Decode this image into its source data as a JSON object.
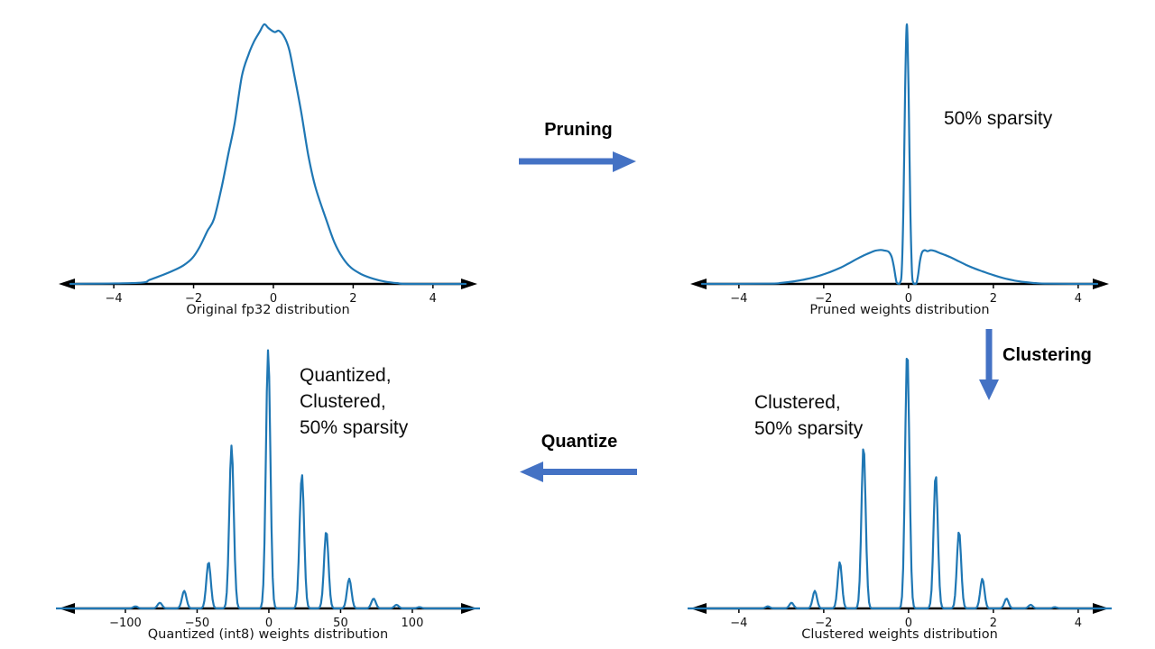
{
  "page": {
    "background": "#ffffff"
  },
  "flow": {
    "arrow_color": "#4472c4",
    "pruning_label": "Pruning",
    "clustering_label": "Clustering",
    "quantize_label": "Quantize"
  },
  "annotations": {
    "pruned_note": "50% sparsity",
    "clustered_note_lines": [
      "Clustered,",
      "50% sparsity"
    ],
    "quantized_note_lines": [
      "Quantized,",
      "Clustered,",
      "50% sparsity"
    ]
  },
  "chart_data": [
    {
      "id": "original-fp32",
      "type": "line",
      "title": "Original fp32 distribution",
      "xticks": [
        -4,
        -2,
        0,
        2,
        4
      ],
      "xtick_labels": [
        "−4",
        "−2",
        "0",
        "2",
        "4"
      ],
      "xlim": [
        -5.45,
        5.18
      ],
      "ylim": [
        0,
        1
      ],
      "color": "#1f77b4",
      "points": [
        [
          -3.4,
          0.004
        ],
        [
          -3.1,
          0.016
        ],
        [
          -2.8,
          0.033
        ],
        [
          -2.5,
          0.052
        ],
        [
          -2.25,
          0.072
        ],
        [
          -2.03,
          0.1
        ],
        [
          -1.85,
          0.142
        ],
        [
          -1.65,
          0.205
        ],
        [
          -1.49,
          0.25
        ],
        [
          -1.3,
          0.37
        ],
        [
          -1.13,
          0.5
        ],
        [
          -0.97,
          0.62
        ],
        [
          -0.79,
          0.8
        ],
        [
          -0.62,
          0.885
        ],
        [
          -0.48,
          0.935
        ],
        [
          -0.34,
          0.972
        ],
        [
          -0.23,
          1.0
        ],
        [
          -0.12,
          0.985
        ],
        [
          0.03,
          0.97
        ],
        [
          0.14,
          0.975
        ],
        [
          0.28,
          0.95
        ],
        [
          0.4,
          0.9
        ],
        [
          0.53,
          0.8
        ],
        [
          0.7,
          0.66
        ],
        [
          0.87,
          0.5
        ],
        [
          1.05,
          0.375
        ],
        [
          1.32,
          0.25
        ],
        [
          1.53,
          0.16
        ],
        [
          1.74,
          0.1
        ],
        [
          1.95,
          0.062
        ],
        [
          2.2,
          0.038
        ],
        [
          2.5,
          0.02
        ],
        [
          2.8,
          0.009
        ],
        [
          3.1,
          0.003
        ],
        [
          3.4,
          0.0
        ]
      ]
    },
    {
      "id": "pruned-weights",
      "type": "line",
      "title": "Pruned weights distribution",
      "xticks": [
        -4,
        -2,
        0,
        2,
        4
      ],
      "xtick_labels": [
        "−4",
        "−2",
        "0",
        "2",
        "4"
      ],
      "xlim": [
        -5.21,
        4.79
      ],
      "ylim": [
        0,
        1
      ],
      "color": "#1f77b4",
      "points": [
        [
          -3.3,
          0.001
        ],
        [
          -3.0,
          0.004
        ],
        [
          -2.7,
          0.01
        ],
        [
          -2.4,
          0.019
        ],
        [
          -2.1,
          0.032
        ],
        [
          -1.85,
          0.046
        ],
        [
          -1.6,
          0.063
        ],
        [
          -1.4,
          0.08
        ],
        [
          -1.2,
          0.098
        ],
        [
          -1.05,
          0.11
        ],
        [
          -0.9,
          0.121
        ],
        [
          -0.78,
          0.128
        ],
        [
          -0.66,
          0.131
        ],
        [
          -0.55,
          0.128
        ],
        [
          -0.47,
          0.124
        ],
        [
          -0.4,
          0.105
        ],
        [
          -0.35,
          0.07
        ],
        [
          -0.31,
          0.03
        ],
        [
          -0.28,
          0.006
        ],
        [
          -0.24,
          0.001
        ],
        [
          -0.2,
          0.006
        ],
        [
          -0.16,
          0.05
        ],
        [
          -0.12,
          0.3
        ],
        [
          -0.08,
          0.75
        ],
        [
          -0.04,
          1.0
        ],
        [
          0.0,
          0.75
        ],
        [
          0.04,
          0.3
        ],
        [
          0.08,
          0.05
        ],
        [
          0.11,
          0.006
        ],
        [
          0.15,
          0.001
        ],
        [
          0.19,
          0.005
        ],
        [
          0.23,
          0.04
        ],
        [
          0.27,
          0.09
        ],
        [
          0.32,
          0.122
        ],
        [
          0.38,
          0.13
        ],
        [
          0.45,
          0.126
        ],
        [
          0.52,
          0.13
        ],
        [
          0.62,
          0.127
        ],
        [
          0.72,
          0.12
        ],
        [
          0.85,
          0.112
        ],
        [
          1.0,
          0.102
        ],
        [
          1.15,
          0.09
        ],
        [
          1.35,
          0.074
        ],
        [
          1.55,
          0.06
        ],
        [
          1.75,
          0.048
        ],
        [
          2.0,
          0.034
        ],
        [
          2.25,
          0.022
        ],
        [
          2.5,
          0.013
        ],
        [
          2.75,
          0.007
        ],
        [
          3.0,
          0.003
        ],
        [
          3.3,
          0.001
        ]
      ]
    },
    {
      "id": "quantized-int8-weights",
      "type": "line",
      "title": "Quantized (int8) weights distribution",
      "xticks": [
        -100,
        -50,
        0,
        50,
        100
      ],
      "xtick_labels": [
        "−100",
        "−50",
        "0",
        "50",
        "100"
      ],
      "xlim": [
        -148.4,
        147.2
      ],
      "ylim": [
        0,
        1
      ],
      "color": "#1f77b4",
      "sigma": 1.55,
      "peaks": [
        {
          "x": -93,
          "h": 0.008
        },
        {
          "x": -76,
          "h": 0.022
        },
        {
          "x": -59,
          "h": 0.068
        },
        {
          "x": -42,
          "h": 0.18
        },
        {
          "x": -26,
          "h": 0.63
        },
        {
          "x": -0.5,
          "h": 1.0
        },
        {
          "x": 23,
          "h": 0.52
        },
        {
          "x": 40,
          "h": 0.3
        },
        {
          "x": 56,
          "h": 0.115
        },
        {
          "x": 73,
          "h": 0.038
        },
        {
          "x": 89,
          "h": 0.014
        },
        {
          "x": 105,
          "h": 0.005
        }
      ]
    },
    {
      "id": "clustered-weights",
      "type": "line",
      "title": "Clustered weights distribution",
      "xticks": [
        -4,
        -2,
        0,
        2,
        4
      ],
      "xtick_labels": [
        "−4",
        "−2",
        "0",
        "2",
        "4"
      ],
      "xlim": [
        -5.21,
        4.79
      ],
      "ylim": [
        0,
        1
      ],
      "color": "#1f77b4",
      "sigma": 0.05,
      "peaks": [
        {
          "x": -3.32,
          "h": 0.008
        },
        {
          "x": -2.76,
          "h": 0.022
        },
        {
          "x": -2.21,
          "h": 0.068
        },
        {
          "x": -1.62,
          "h": 0.18
        },
        {
          "x": -1.06,
          "h": 0.63
        },
        {
          "x": -0.03,
          "h": 1.0
        },
        {
          "x": 0.64,
          "h": 0.52
        },
        {
          "x": 1.19,
          "h": 0.3
        },
        {
          "x": 1.74,
          "h": 0.115
        },
        {
          "x": 2.31,
          "h": 0.038
        },
        {
          "x": 2.88,
          "h": 0.014
        },
        {
          "x": 3.45,
          "h": 0.005
        }
      ]
    }
  ]
}
